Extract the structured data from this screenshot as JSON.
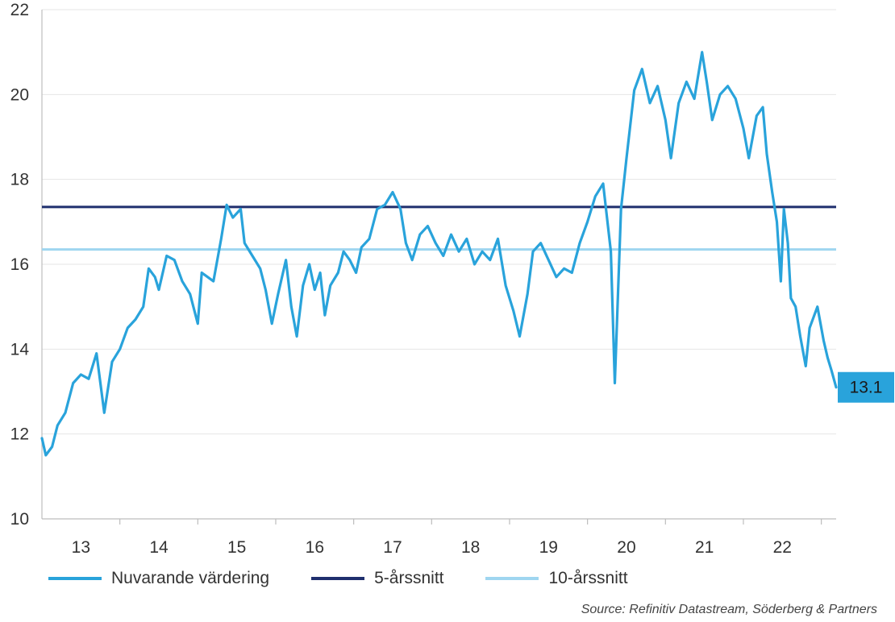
{
  "chart_data": {
    "type": "line",
    "title": "",
    "xlabel": "",
    "ylabel": "",
    "xlim": [
      12.25,
      22.44
    ],
    "ylim": [
      10,
      22
    ],
    "yticks": [
      10,
      12,
      14,
      16,
      18,
      20,
      22
    ],
    "xticks": [
      {
        "value": 12.75,
        "label": "13"
      },
      {
        "value": 13.75,
        "label": "14"
      },
      {
        "value": 14.75,
        "label": "15"
      },
      {
        "value": 15.75,
        "label": "16"
      },
      {
        "value": 16.75,
        "label": "17"
      },
      {
        "value": 17.75,
        "label": "18"
      },
      {
        "value": 18.75,
        "label": "19"
      },
      {
        "value": 19.75,
        "label": "20"
      },
      {
        "value": 20.75,
        "label": "21"
      },
      {
        "value": 21.75,
        "label": "22"
      }
    ],
    "grid": true,
    "legend_position": "bottom-left",
    "end_label": "13.1",
    "series": [
      {
        "name": "Nuvarande värdering",
        "color": "#29A3DB",
        "points": [
          [
            12.25,
            11.9
          ],
          [
            12.3,
            11.5
          ],
          [
            12.38,
            11.7
          ],
          [
            12.45,
            12.2
          ],
          [
            12.55,
            12.5
          ],
          [
            12.65,
            13.2
          ],
          [
            12.75,
            13.4
          ],
          [
            12.85,
            13.3
          ],
          [
            12.95,
            13.9
          ],
          [
            13.05,
            12.5
          ],
          [
            13.15,
            13.7
          ],
          [
            13.25,
            14.0
          ],
          [
            13.35,
            14.5
          ],
          [
            13.45,
            14.7
          ],
          [
            13.55,
            15.0
          ],
          [
            13.62,
            15.9
          ],
          [
            13.7,
            15.7
          ],
          [
            13.75,
            15.4
          ],
          [
            13.85,
            16.2
          ],
          [
            13.95,
            16.1
          ],
          [
            14.05,
            15.6
          ],
          [
            14.15,
            15.3
          ],
          [
            14.25,
            14.6
          ],
          [
            14.3,
            15.8
          ],
          [
            14.45,
            15.6
          ],
          [
            14.55,
            16.6
          ],
          [
            14.62,
            17.4
          ],
          [
            14.7,
            17.1
          ],
          [
            14.8,
            17.3
          ],
          [
            14.85,
            16.5
          ],
          [
            14.95,
            16.2
          ],
          [
            15.05,
            15.9
          ],
          [
            15.12,
            15.4
          ],
          [
            15.2,
            14.6
          ],
          [
            15.28,
            15.3
          ],
          [
            15.38,
            16.1
          ],
          [
            15.45,
            15.0
          ],
          [
            15.52,
            14.3
          ],
          [
            15.6,
            15.5
          ],
          [
            15.68,
            16.0
          ],
          [
            15.75,
            15.4
          ],
          [
            15.82,
            15.8
          ],
          [
            15.88,
            14.8
          ],
          [
            15.95,
            15.5
          ],
          [
            16.05,
            15.8
          ],
          [
            16.12,
            16.3
          ],
          [
            16.2,
            16.1
          ],
          [
            16.28,
            15.8
          ],
          [
            16.35,
            16.4
          ],
          [
            16.45,
            16.6
          ],
          [
            16.55,
            17.3
          ],
          [
            16.65,
            17.4
          ],
          [
            16.75,
            17.7
          ],
          [
            16.85,
            17.3
          ],
          [
            16.92,
            16.5
          ],
          [
            17.0,
            16.1
          ],
          [
            17.1,
            16.7
          ],
          [
            17.2,
            16.9
          ],
          [
            17.3,
            16.5
          ],
          [
            17.4,
            16.2
          ],
          [
            17.5,
            16.7
          ],
          [
            17.6,
            16.3
          ],
          [
            17.7,
            16.6
          ],
          [
            17.8,
            16.0
          ],
          [
            17.9,
            16.3
          ],
          [
            18.0,
            16.1
          ],
          [
            18.1,
            16.6
          ],
          [
            18.2,
            15.5
          ],
          [
            18.3,
            14.9
          ],
          [
            18.38,
            14.3
          ],
          [
            18.48,
            15.3
          ],
          [
            18.55,
            16.3
          ],
          [
            18.65,
            16.5
          ],
          [
            18.75,
            16.1
          ],
          [
            18.85,
            15.7
          ],
          [
            18.95,
            15.9
          ],
          [
            19.05,
            15.8
          ],
          [
            19.15,
            16.5
          ],
          [
            19.25,
            17.0
          ],
          [
            19.35,
            17.6
          ],
          [
            19.45,
            17.9
          ],
          [
            19.55,
            16.3
          ],
          [
            19.6,
            13.2
          ],
          [
            19.68,
            17.3
          ],
          [
            19.75,
            18.5
          ],
          [
            19.85,
            20.1
          ],
          [
            19.95,
            20.6
          ],
          [
            20.05,
            19.8
          ],
          [
            20.15,
            20.2
          ],
          [
            20.25,
            19.4
          ],
          [
            20.32,
            18.5
          ],
          [
            20.42,
            19.8
          ],
          [
            20.52,
            20.3
          ],
          [
            20.62,
            19.9
          ],
          [
            20.72,
            21.0
          ],
          [
            20.78,
            20.3
          ],
          [
            20.85,
            19.4
          ],
          [
            20.95,
            20.0
          ],
          [
            21.05,
            20.2
          ],
          [
            21.15,
            19.9
          ],
          [
            21.25,
            19.2
          ],
          [
            21.32,
            18.5
          ],
          [
            21.42,
            19.5
          ],
          [
            21.5,
            19.7
          ],
          [
            21.55,
            18.6
          ],
          [
            21.62,
            17.7
          ],
          [
            21.68,
            17.0
          ],
          [
            21.73,
            15.6
          ],
          [
            21.77,
            17.3
          ],
          [
            21.82,
            16.5
          ],
          [
            21.86,
            15.2
          ],
          [
            21.92,
            15.0
          ],
          [
            21.98,
            14.3
          ],
          [
            22.05,
            13.6
          ],
          [
            22.1,
            14.5
          ],
          [
            22.2,
            15.0
          ],
          [
            22.28,
            14.2
          ],
          [
            22.33,
            13.8
          ],
          [
            22.38,
            13.5
          ],
          [
            22.44,
            13.1
          ]
        ]
      },
      {
        "name": "5-årssnitt",
        "color": "#1F2F6E",
        "constant": 17.35
      },
      {
        "name": "10-årssnitt",
        "color": "#9FD6F0",
        "constant": 16.35
      }
    ],
    "source": "Source: Refinitiv Datastream, Söderberg & Partners"
  }
}
